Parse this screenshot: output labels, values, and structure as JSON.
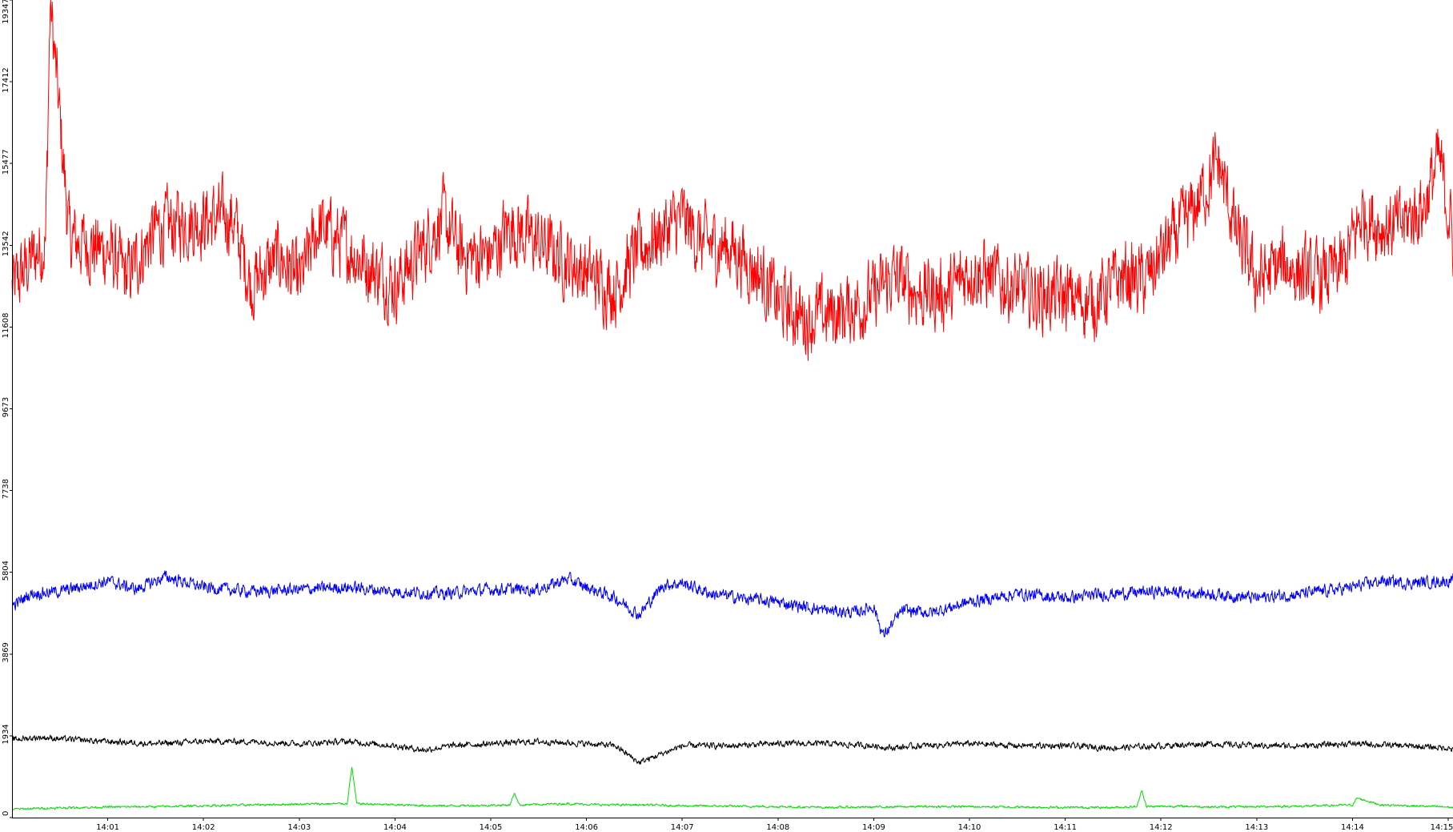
{
  "chart_data": {
    "type": "line",
    "title": "",
    "xlabel": "",
    "ylabel": "",
    "ylim": [
      0,
      19347
    ],
    "xlim_minutes": [
      0.0,
      15.05
    ],
    "y_ticks": [
      0,
      1934,
      3869,
      5804,
      7738,
      9673,
      11608,
      13542,
      15477,
      17412,
      19347
    ],
    "y_tick_labels": [
      "0",
      "1934",
      "3869",
      "5804",
      "7738",
      "9673",
      "11608",
      "13542",
      "15477",
      "17412",
      "19347"
    ],
    "x_ticks": [
      "14:01",
      "14:02",
      "14:03",
      "14:04",
      "14:05",
      "14:06",
      "14:07",
      "14:08",
      "14:09",
      "14:10",
      "14:11",
      "14:12",
      "14:13",
      "14:14",
      "14:15"
    ],
    "grid": false,
    "legend": "none",
    "series": [
      {
        "color": "#ff0000",
        "x": [
          0.0,
          0.2,
          0.35,
          0.4,
          0.6,
          1.0,
          1.2,
          1.5,
          1.8,
          2.3,
          2.5,
          2.8,
          3.0,
          3.2,
          3.5,
          3.7,
          4.0,
          4.2,
          4.5,
          4.7,
          5.0,
          5.2,
          5.5,
          6.0,
          6.3,
          6.5,
          6.7,
          7.0,
          7.2,
          7.5,
          7.8,
          8.0,
          8.3,
          8.7,
          9.0,
          9.2,
          9.5,
          9.8,
          10.0,
          10.3,
          10.6,
          11.0,
          11.3,
          11.6,
          11.85,
          12.0,
          12.3,
          12.6,
          12.8,
          13.0,
          13.3,
          13.6,
          13.9,
          14.1,
          14.3,
          14.5,
          14.75,
          14.9,
          15.0,
          15.05
        ],
        "y": [
          12500,
          13200,
          13600,
          19300,
          13700,
          13400,
          12800,
          13900,
          14100,
          14200,
          12600,
          13300,
          12600,
          14000,
          13500,
          13100,
          12600,
          13200,
          14200,
          13300,
          13300,
          14000,
          13600,
          12900,
          12500,
          13300,
          13700,
          14200,
          13600,
          13500,
          12900,
          12200,
          11800,
          12000,
          12300,
          12800,
          12400,
          12400,
          13000,
          12700,
          12400,
          12300,
          12200,
          12800,
          12700,
          13300,
          14200,
          15500,
          13700,
          12700,
          13100,
          12700,
          13000,
          14300,
          14000,
          14000,
          14500,
          15600,
          14400,
          13600
        ]
      },
      {
        "color": "#0000ff",
        "x": [
          0.0,
          0.2,
          0.5,
          0.8,
          1.0,
          1.3,
          1.6,
          2.0,
          2.5,
          3.0,
          3.5,
          4.0,
          4.5,
          5.0,
          5.5,
          5.8,
          6.0,
          6.3,
          6.55,
          6.8,
          7.0,
          7.3,
          7.6,
          8.0,
          8.5,
          8.8,
          9.0,
          9.1,
          9.3,
          9.6,
          10.0,
          10.5,
          11.0,
          11.5,
          12.0,
          12.5,
          13.0,
          13.5,
          14.0,
          14.3,
          14.6,
          15.0,
          15.05
        ],
        "y": [
          5000,
          5300,
          5350,
          5500,
          5600,
          5400,
          5700,
          5450,
          5350,
          5400,
          5450,
          5350,
          5300,
          5400,
          5400,
          5650,
          5450,
          5200,
          4800,
          5500,
          5550,
          5300,
          5200,
          5100,
          4900,
          4850,
          5000,
          4300,
          4900,
          4850,
          5100,
          5300,
          5200,
          5300,
          5350,
          5300,
          5200,
          5300,
          5450,
          5600,
          5550,
          5600,
          5650
        ]
      },
      {
        "color": "#000000",
        "x": [
          0.0,
          0.3,
          0.6,
          1.0,
          1.5,
          2.0,
          2.5,
          3.0,
          3.5,
          4.0,
          4.3,
          4.6,
          5.0,
          5.5,
          6.0,
          6.3,
          6.55,
          7.0,
          7.5,
          8.0,
          8.5,
          9.0,
          9.2,
          9.5,
          10.0,
          10.5,
          11.0,
          11.5,
          12.0,
          12.5,
          13.0,
          13.5,
          14.0,
          14.5,
          15.0,
          15.05
        ],
        "y": [
          1850,
          1900,
          1850,
          1800,
          1750,
          1800,
          1800,
          1750,
          1800,
          1700,
          1600,
          1700,
          1750,
          1800,
          1750,
          1700,
          1300,
          1700,
          1700,
          1750,
          1750,
          1700,
          1650,
          1700,
          1750,
          1700,
          1700,
          1650,
          1700,
          1750,
          1700,
          1700,
          1750,
          1700,
          1650,
          1600
        ]
      },
      {
        "color": "#00dd00",
        "x": [
          0.0,
          0.5,
          1.0,
          1.5,
          2.0,
          2.5,
          3.0,
          3.5,
          3.55,
          3.6,
          4.0,
          4.5,
          5.0,
          5.2,
          5.25,
          5.3,
          5.8,
          6.2,
          6.6,
          7.0,
          7.5,
          8.0,
          8.5,
          9.0,
          9.5,
          10.0,
          10.5,
          11.0,
          11.5,
          11.75,
          11.8,
          11.85,
          12.2,
          12.6,
          13.0,
          13.5,
          14.0,
          14.05,
          14.3,
          14.6,
          15.0,
          15.05
        ],
        "y": [
          200,
          230,
          250,
          260,
          280,
          300,
          320,
          330,
          1200,
          330,
          300,
          280,
          290,
          300,
          580,
          300,
          330,
          300,
          300,
          280,
          270,
          260,
          240,
          250,
          260,
          260,
          250,
          240,
          240,
          260,
          650,
          260,
          270,
          250,
          260,
          270,
          300,
          460,
          300,
          280,
          250,
          240
        ]
      }
    ]
  }
}
